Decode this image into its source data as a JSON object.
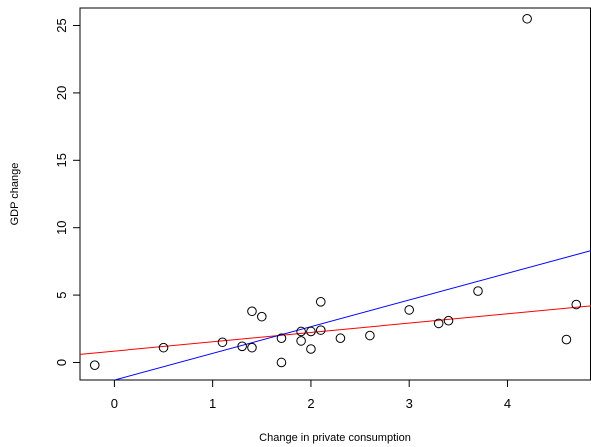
{
  "chart_data": {
    "type": "scatter",
    "xlabel": "Change in private consumption",
    "ylabel": "GDP change",
    "xlim": [
      -0.35,
      4.85
    ],
    "ylim": [
      -1.3,
      26.3
    ],
    "x_ticks": [
      0,
      1,
      2,
      3,
      4
    ],
    "y_ticks": [
      0,
      5,
      10,
      15,
      20,
      25
    ],
    "grid": false,
    "legend": "none",
    "series": [
      {
        "type": "scatter",
        "marker": "open-circle",
        "color": "#000000",
        "points": [
          {
            "x": -0.2,
            "y": -0.2
          },
          {
            "x": 0.5,
            "y": 1.1
          },
          {
            "x": 1.1,
            "y": 1.5
          },
          {
            "x": 1.3,
            "y": 1.2
          },
          {
            "x": 1.4,
            "y": 1.1
          },
          {
            "x": 1.4,
            "y": 3.8
          },
          {
            "x": 1.5,
            "y": 3.4
          },
          {
            "x": 1.7,
            "y": 1.8
          },
          {
            "x": 1.7,
            "y": 0.0
          },
          {
            "x": 1.9,
            "y": 2.3
          },
          {
            "x": 1.9,
            "y": 1.6
          },
          {
            "x": 2.0,
            "y": 2.3
          },
          {
            "x": 2.0,
            "y": 1.0
          },
          {
            "x": 2.1,
            "y": 2.4
          },
          {
            "x": 2.1,
            "y": 4.5
          },
          {
            "x": 2.3,
            "y": 1.8
          },
          {
            "x": 2.6,
            "y": 2.0
          },
          {
            "x": 3.0,
            "y": 3.9
          },
          {
            "x": 3.3,
            "y": 2.9
          },
          {
            "x": 3.4,
            "y": 3.1
          },
          {
            "x": 3.7,
            "y": 5.3
          },
          {
            "x": 4.2,
            "y": 25.5
          },
          {
            "x": 4.6,
            "y": 1.7
          },
          {
            "x": 4.7,
            "y": 4.3
          }
        ]
      },
      {
        "type": "line",
        "color": "#ff0000",
        "points": [
          {
            "x": -0.35,
            "y": 0.6
          },
          {
            "x": 4.85,
            "y": 4.2
          }
        ]
      },
      {
        "type": "line",
        "color": "#0000ff",
        "points": [
          {
            "x": -0.35,
            "y": -2.0
          },
          {
            "x": 4.85,
            "y": 8.3
          }
        ]
      }
    ]
  }
}
